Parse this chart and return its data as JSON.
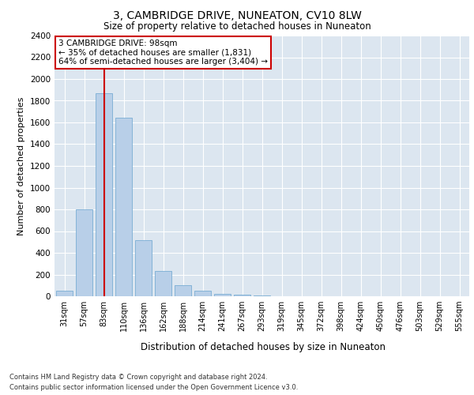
{
  "title": "3, CAMBRIDGE DRIVE, NUNEATON, CV10 8LW",
  "subtitle": "Size of property relative to detached houses in Nuneaton",
  "xlabel": "Distribution of detached houses by size in Nuneaton",
  "ylabel": "Number of detached properties",
  "categories": [
    "31sqm",
    "57sqm",
    "83sqm",
    "110sqm",
    "136sqm",
    "162sqm",
    "188sqm",
    "214sqm",
    "241sqm",
    "267sqm",
    "293sqm",
    "319sqm",
    "345sqm",
    "372sqm",
    "398sqm",
    "424sqm",
    "450sqm",
    "476sqm",
    "503sqm",
    "529sqm",
    "555sqm"
  ],
  "values": [
    50,
    800,
    1870,
    1640,
    520,
    235,
    105,
    48,
    25,
    15,
    5,
    2,
    0,
    0,
    0,
    0,
    0,
    0,
    0,
    0,
    0
  ],
  "bar_color": "#b8cfe8",
  "bar_edge_color": "#7aadd4",
  "vline_x": 2,
  "vline_color": "#cc0000",
  "annotation_text": "3 CAMBRIDGE DRIVE: 98sqm\n← 35% of detached houses are smaller (1,831)\n64% of semi-detached houses are larger (3,404) →",
  "annotation_box_color": "#ffffff",
  "annotation_box_edge": "#cc0000",
  "ylim": [
    0,
    2400
  ],
  "yticks": [
    0,
    200,
    400,
    600,
    800,
    1000,
    1200,
    1400,
    1600,
    1800,
    2000,
    2200,
    2400
  ],
  "background_color": "#dce6f0",
  "footer_line1": "Contains HM Land Registry data © Crown copyright and database right 2024.",
  "footer_line2": "Contains public sector information licensed under the Open Government Licence v3.0."
}
